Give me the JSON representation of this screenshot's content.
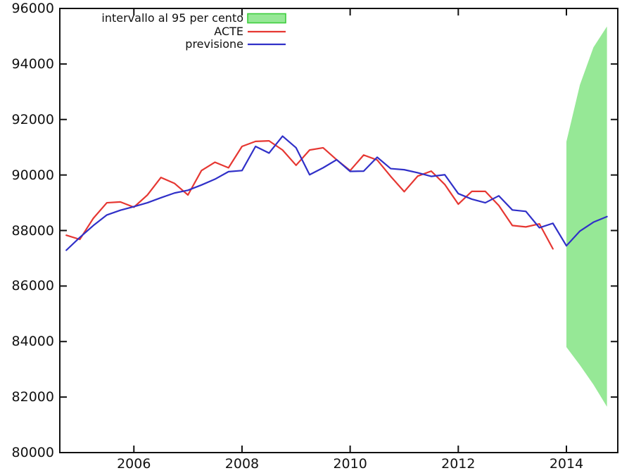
{
  "chart_data": {
    "type": "line",
    "title": "",
    "xlabel": "",
    "ylabel": "",
    "xlim": [
      2004.63,
      2014.95
    ],
    "ylim": [
      80000,
      96000
    ],
    "x_ticks": [
      2006,
      2008,
      2010,
      2012,
      2014
    ],
    "y_ticks": [
      80000,
      82000,
      84000,
      86000,
      88000,
      90000,
      92000,
      94000,
      96000
    ],
    "grid": false,
    "legend_position": "top-left-inside",
    "legend": [
      {
        "label": "intervallo al 95 per cento",
        "swatch": "band"
      },
      {
        "label": "ACTE",
        "swatch": "line"
      },
      {
        "label": "previsione",
        "swatch": "line"
      }
    ],
    "colors": {
      "acte": "#e63732",
      "previsione": "#3030c8",
      "band_fill": "#96e896",
      "band_border": "#3ccd3c",
      "axis": "#111111",
      "background": "#ffffff"
    },
    "series": [
      {
        "name": "ACTE",
        "color": "#e63732",
        "x": [
          2004.75,
          2005.0,
          2005.25,
          2005.5,
          2005.75,
          2006.0,
          2006.25,
          2006.5,
          2006.75,
          2007.0,
          2007.25,
          2007.5,
          2007.75,
          2008.0,
          2008.25,
          2008.5,
          2008.75,
          2009.0,
          2009.25,
          2009.5,
          2009.75,
          2010.0,
          2010.25,
          2010.5,
          2010.75,
          2011.0,
          2011.25,
          2011.5,
          2011.75,
          2012.0,
          2012.25,
          2012.5,
          2012.75,
          2013.0,
          2013.25,
          2013.5,
          2013.75
        ],
        "values": [
          87830,
          87680,
          88440,
          89000,
          89030,
          88840,
          89280,
          89910,
          89700,
          89280,
          90160,
          90460,
          90260,
          91030,
          91210,
          91230,
          90900,
          90350,
          90900,
          90980,
          90550,
          90160,
          90720,
          90540,
          89950,
          89400,
          89960,
          90140,
          89660,
          88950,
          89410,
          89410,
          88900,
          88180,
          88130,
          88240,
          87340
        ]
      },
      {
        "name": "previsione",
        "color": "#3030c8",
        "x": [
          2004.75,
          2005.0,
          2005.25,
          2005.5,
          2005.75,
          2006.0,
          2006.25,
          2006.5,
          2006.75,
          2007.0,
          2007.25,
          2007.5,
          2007.75,
          2008.0,
          2008.25,
          2008.5,
          2008.75,
          2009.0,
          2009.25,
          2009.5,
          2009.75,
          2010.0,
          2010.25,
          2010.5,
          2010.75,
          2011.0,
          2011.25,
          2011.5,
          2011.75,
          2012.0,
          2012.25,
          2012.5,
          2012.75,
          2013.0,
          2013.25,
          2013.5,
          2013.75,
          2014.0,
          2014.25,
          2014.5,
          2014.75
        ],
        "values": [
          87290,
          87750,
          88180,
          88560,
          88730,
          88860,
          89000,
          89180,
          89350,
          89450,
          89640,
          89850,
          90120,
          90160,
          91030,
          90790,
          91400,
          90980,
          90010,
          90260,
          90550,
          90130,
          90140,
          90640,
          90230,
          90190,
          90080,
          89950,
          90010,
          89330,
          89130,
          89000,
          89250,
          88740,
          88690,
          88100,
          88260,
          87450,
          87980,
          88300,
          88500
        ]
      }
    ],
    "band": {
      "name": "intervallo al 95 per cento",
      "x": [
        2014.0,
        2014.25,
        2014.5,
        2014.75
      ],
      "upper": [
        91200,
        93250,
        94600,
        95350
      ],
      "lower": [
        83800,
        83150,
        82450,
        81650
      ]
    }
  }
}
